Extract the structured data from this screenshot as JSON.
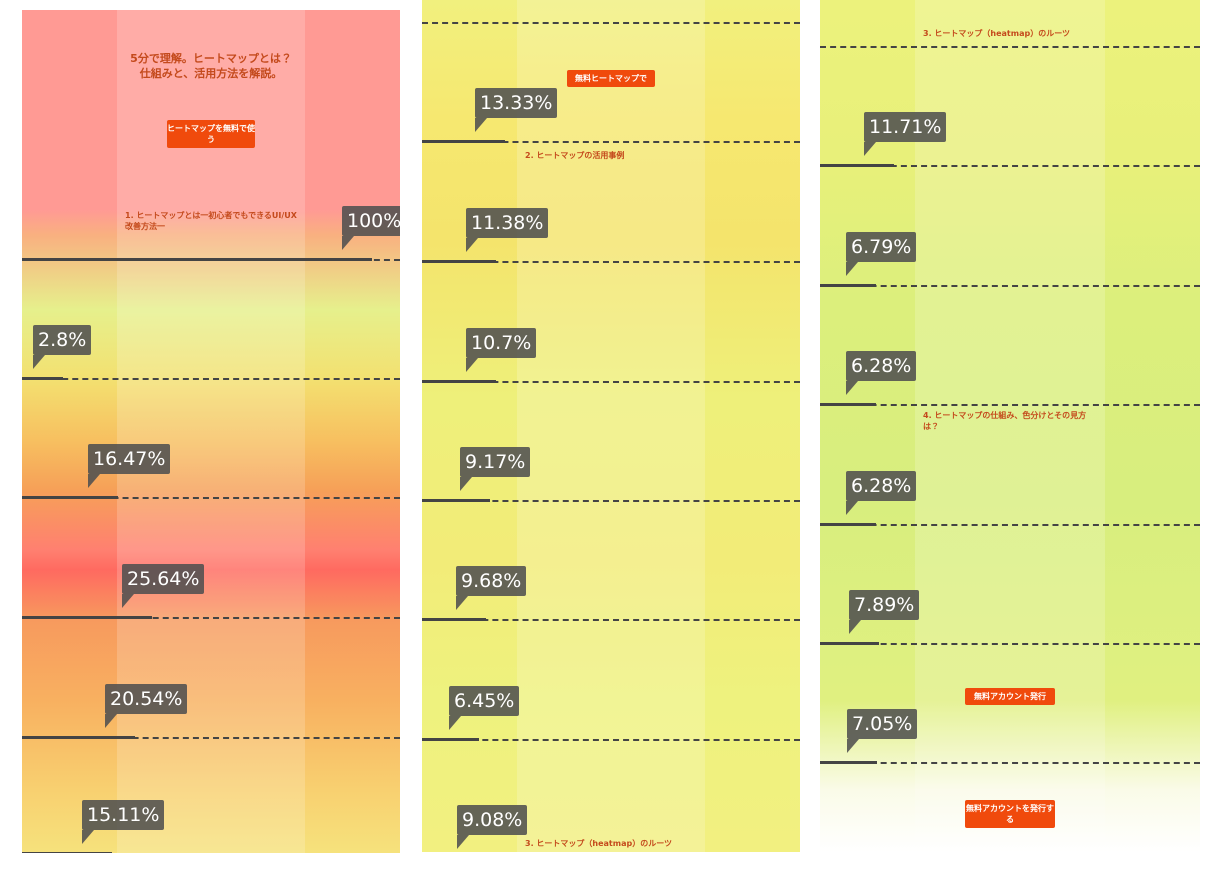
{
  "columns": [
    {
      "labels": [
        "100%",
        "2.8%",
        "16.47%",
        "25.64%",
        "20.54%",
        "15.11%"
      ],
      "texts": [
        "5分で理解。ヒートマップとは？",
        "仕組みと、活用方法を解説。",
        "ヒートマップを無料で使う",
        "1. ヒートマップとは一初心者でもできるUI/UX改善方法一"
      ]
    },
    {
      "labels": [
        "13.33%",
        "11.38%",
        "10.7%",
        "9.17%",
        "9.68%",
        "6.45%",
        "9.08%"
      ],
      "texts": [
        "無料ヒートマップで",
        "2. ヒートマップの活用事例",
        "3. ヒートマップ（heatmap）のルーツ"
      ]
    },
    {
      "labels": [
        "11.71%",
        "6.79%",
        "6.28%",
        "6.28%",
        "7.89%",
        "7.05%"
      ],
      "texts": [
        "3. ヒートマップ（heatmap）のルーツ",
        "4. ヒートマップの仕組み、色分けとその見方は？",
        "無料アカウント発行",
        "無料アカウントを発行する"
      ]
    }
  ]
}
